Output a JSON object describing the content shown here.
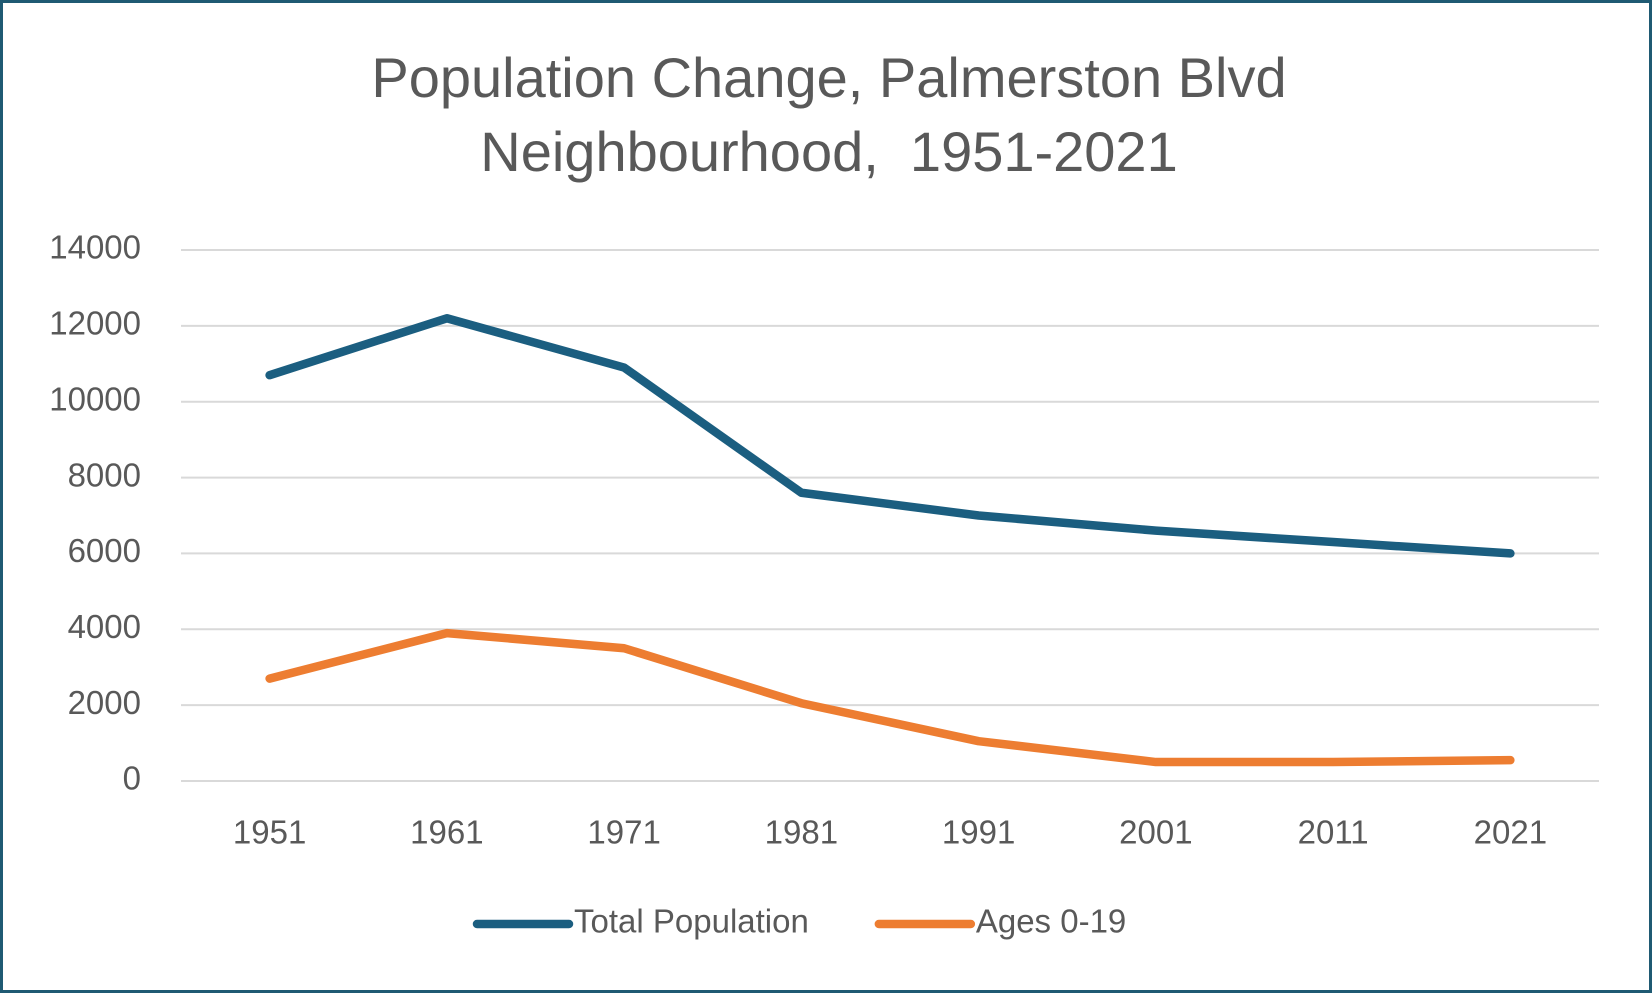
{
  "chart_data": {
    "type": "line",
    "title": "Population Change, Palmerston Blvd Neighbourhood,  1951-2021",
    "categories": [
      "1951",
      "1961",
      "1971",
      "1981",
      "1991",
      "2001",
      "2011",
      "2021"
    ],
    "series": [
      {
        "name": "Total Population",
        "color": "#1b5e80",
        "values": [
          10700,
          12200,
          10900,
          7600,
          7000,
          6600,
          6300,
          6000
        ]
      },
      {
        "name": "Ages 0-19",
        "color": "#ed7d31",
        "values": [
          2700,
          3900,
          3500,
          2050,
          1050,
          500,
          500,
          550
        ]
      }
    ],
    "ylim": [
      0,
      14000
    ],
    "yticks": [
      0,
      2000,
      4000,
      6000,
      8000,
      10000,
      12000,
      14000
    ],
    "grid": true,
    "legend": "bottom"
  }
}
